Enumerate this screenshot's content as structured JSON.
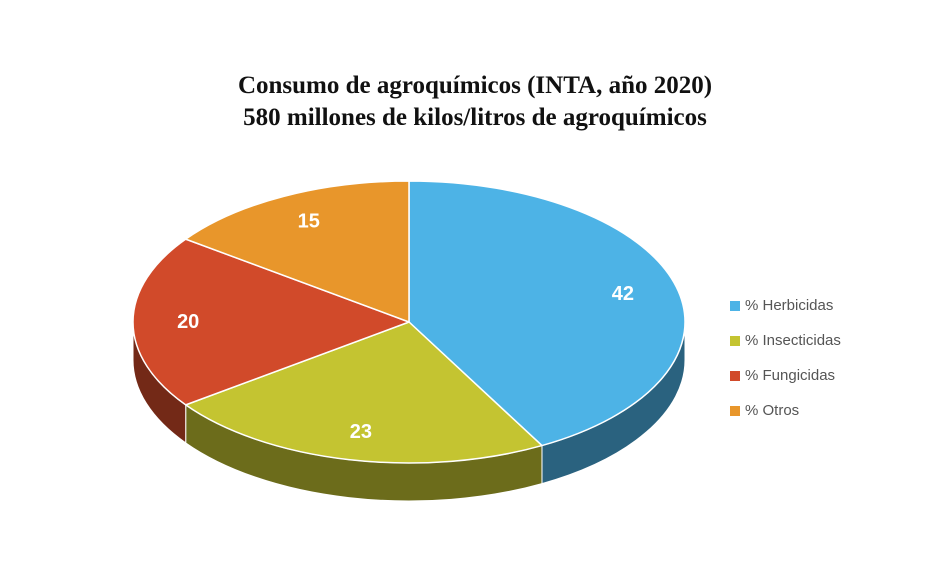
{
  "chart_data": {
    "type": "pie",
    "title": "Consumo de agroquímicos (INTA, año 2020)",
    "subtitle": "580 millones de kilos/litros de agroquímicos",
    "categories": [
      "% Herbicidas",
      "% Insecticidas",
      "% Fungicidas",
      "% Otros"
    ],
    "values": [
      42,
      23,
      20,
      15
    ],
    "colors": [
      "#4db3e6",
      "#c4c431",
      "#d14a2a",
      "#e8962b"
    ],
    "three_d": true,
    "legend_position": "right"
  }
}
